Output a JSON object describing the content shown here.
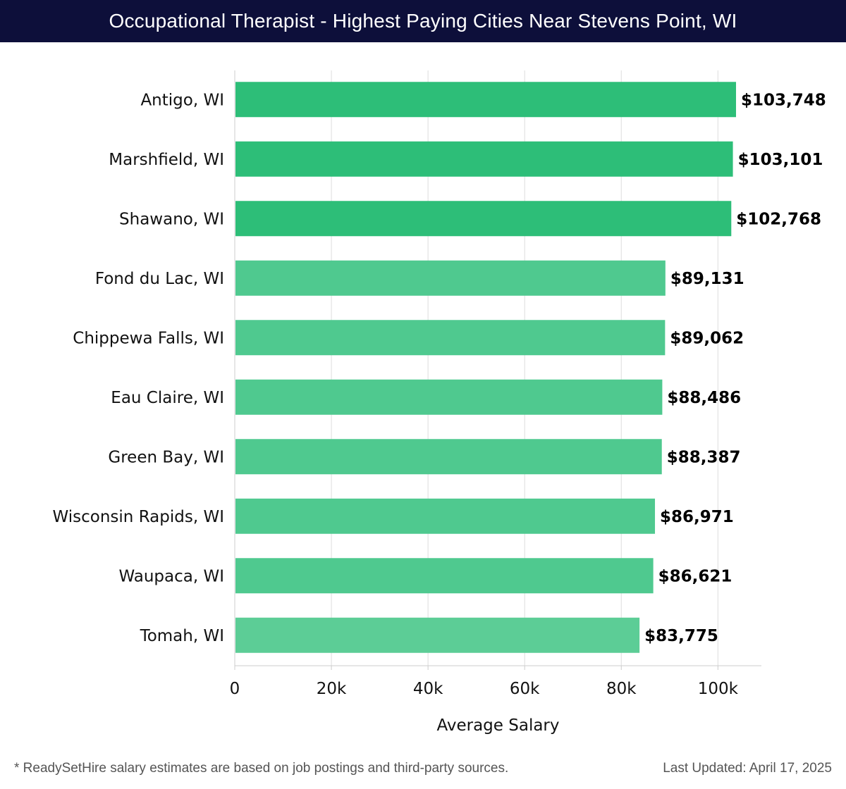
{
  "header": {
    "title": "Occupational Therapist - Highest Paying Cities Near Stevens Point, WI"
  },
  "chart_data": {
    "type": "bar",
    "orientation": "horizontal",
    "title": "Occupational Therapist - Highest Paying Cities Near Stevens Point, WI",
    "xlabel": "Average Salary",
    "ylabel": "",
    "categories": [
      "Antigo, WI",
      "Marshfield, WI",
      "Shawano, WI",
      "Fond du Lac, WI",
      "Chippewa Falls, WI",
      "Eau Claire, WI",
      "Green Bay, WI",
      "Wisconsin Rapids, WI",
      "Waupaca, WI",
      "Tomah, WI"
    ],
    "values": [
      103748,
      103101,
      102768,
      89131,
      89062,
      88486,
      88387,
      86971,
      86621,
      83775
    ],
    "value_labels": [
      "$103,748",
      "$103,101",
      "$102,768",
      "$89,131",
      "$89,062",
      "$88,486",
      "$88,387",
      "$86,971",
      "$86,621",
      "$83,775"
    ],
    "xlim": [
      0,
      109000
    ],
    "x_ticks": [
      0,
      20000,
      40000,
      60000,
      80000,
      100000
    ],
    "x_tick_labels": [
      "0",
      "20k",
      "40k",
      "60k",
      "80k",
      "100k"
    ],
    "grid": true,
    "colors": {
      "top3": "#2dbe78",
      "rest": "#4fc98f",
      "rest_light": "#5ccd96",
      "grid": "#dddddd",
      "axis": "#cccccc"
    }
  },
  "footer": {
    "note": "* ReadySetHire salary estimates are based on job postings and third-party sources.",
    "updated": "Last Updated: April 17, 2025"
  }
}
